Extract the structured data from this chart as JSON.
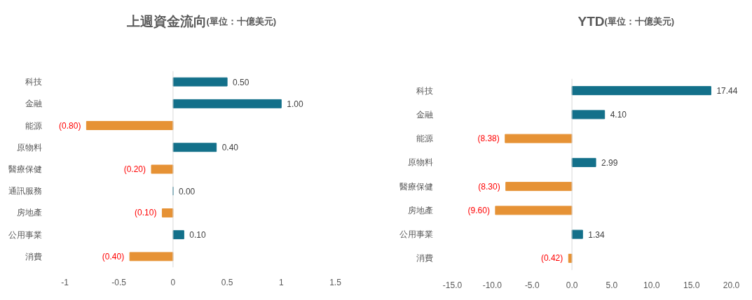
{
  "chart_data": [
    {
      "type": "bar",
      "orientation": "horizontal",
      "title": "上週資金流向",
      "subtitle": "(單位：十億美元)",
      "categories": [
        "科技",
        "金融",
        "能源",
        "原物料",
        "醫療保健",
        "通訊服務",
        "房地產",
        "公用事業",
        "消費"
      ],
      "values": [
        0.5,
        1.0,
        -0.8,
        0.4,
        -0.2,
        0.0,
        -0.1,
        0.1,
        -0.4
      ],
      "value_labels": [
        "0.50",
        "1.00",
        "(0.80)",
        "0.40",
        "(0.20)",
        "0.00",
        "(0.10)",
        "0.10",
        "(0.40)"
      ],
      "colors": [
        "#13708a",
        "#13708a",
        "#e69235",
        "#13708a",
        "#e69235",
        "#13708a",
        "#e69235",
        "#13708a",
        "#e69235"
      ],
      "xlim": [
        -1,
        1.5
      ],
      "xticks": [
        -1,
        -0.5,
        0,
        0.5,
        1,
        1.5
      ]
    },
    {
      "type": "bar",
      "orientation": "horizontal",
      "title": "YTD",
      "subtitle": "(單位：十億美元)",
      "categories": [
        "科技",
        "金融",
        "能源",
        "原物料",
        "醫療保健",
        "房地產",
        "公用事業",
        "消費"
      ],
      "values": [
        17.44,
        4.1,
        -8.38,
        2.99,
        -8.3,
        -9.6,
        1.34,
        -0.42
      ],
      "value_labels": [
        "17.44",
        "4.10",
        "(8.38)",
        "2.99",
        "(8.30)",
        "(9.60)",
        "1.34",
        "(0.42)"
      ],
      "colors": [
        "#13708a",
        "#13708a",
        "#e69235",
        "#13708a",
        "#e69235",
        "#e69235",
        "#13708a",
        "#e69235"
      ],
      "xlim": [
        -15,
        20
      ],
      "xticks": [
        {
          "value": -15,
          "label": "-15.0"
        },
        {
          "value": -10,
          "label": "-10.0"
        },
        {
          "value": -5,
          "label": "-5.0"
        },
        {
          "value": 0,
          "label": "0.0"
        },
        {
          "value": 5,
          "label": "5.0"
        },
        {
          "value": 10,
          "label": "10.0"
        },
        {
          "value": 15,
          "label": "15.0"
        },
        {
          "value": 20,
          "label": "20.0"
        }
      ]
    }
  ]
}
